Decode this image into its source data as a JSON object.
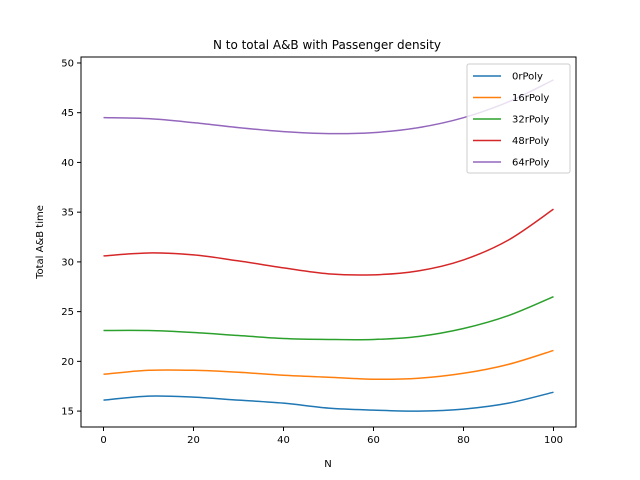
{
  "chart_data": {
    "type": "line",
    "title": "N to total A&B with Passenger density",
    "xlabel": "N",
    "ylabel": "Total A&B time",
    "xlim": [
      -5,
      105
    ],
    "ylim": [
      13.4,
      50.6
    ],
    "xticks": [
      0,
      20,
      40,
      60,
      80,
      100
    ],
    "yticks": [
      15,
      20,
      25,
      30,
      35,
      40,
      45,
      50
    ],
    "grid": false,
    "legend_position": "top-right",
    "x": [
      0,
      10,
      20,
      30,
      40,
      50,
      60,
      70,
      80,
      90,
      100
    ],
    "series": [
      {
        "name": "0rPoly",
        "color": "#1f77b4",
        "values": [
          16.1,
          16.5,
          16.4,
          16.1,
          15.8,
          15.3,
          15.1,
          15.0,
          15.2,
          15.8,
          16.9
        ]
      },
      {
        "name": "16rPoly",
        "color": "#ff7f0e",
        "values": [
          18.7,
          19.1,
          19.1,
          18.9,
          18.6,
          18.4,
          18.2,
          18.3,
          18.8,
          19.7,
          21.1
        ]
      },
      {
        "name": "32rPoly",
        "color": "#2ca02c",
        "values": [
          23.1,
          23.1,
          22.9,
          22.6,
          22.3,
          22.2,
          22.2,
          22.5,
          23.3,
          24.6,
          26.5
        ]
      },
      {
        "name": "48rPoly",
        "color": "#d62728",
        "values": [
          30.6,
          30.9,
          30.7,
          30.1,
          29.4,
          28.8,
          28.7,
          29.1,
          30.2,
          32.2,
          35.3
        ]
      },
      {
        "name": "64rPoly",
        "color": "#9467bd",
        "values": [
          44.5,
          44.4,
          44.0,
          43.5,
          43.1,
          42.9,
          43.0,
          43.5,
          44.5,
          46.1,
          48.3
        ]
      }
    ]
  }
}
